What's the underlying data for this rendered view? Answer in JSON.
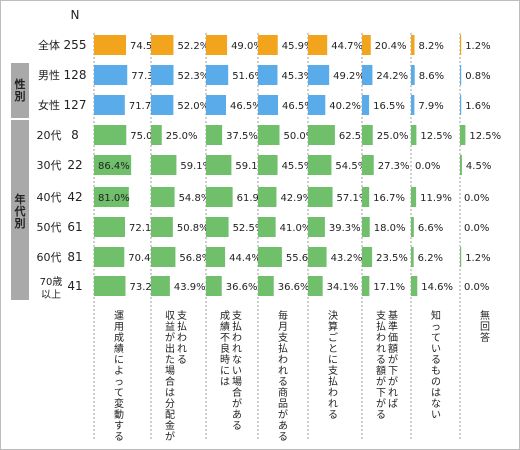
{
  "chart_data": {
    "type": "bar",
    "layout": "small-multiple horizontal bar table",
    "n_header": "N",
    "group_labels": [
      "性別",
      "年代別"
    ],
    "rows": [
      {
        "label": "全体",
        "n": 255
      },
      {
        "label": "男性",
        "n": 128
      },
      {
        "label": "女性",
        "n": 127
      },
      {
        "label": "20代",
        "n": 8
      },
      {
        "label": "30代",
        "n": 22
      },
      {
        "label": "40代",
        "n": 42
      },
      {
        "label": "50代",
        "n": 61
      },
      {
        "label": "60代",
        "n": 81
      },
      {
        "label": "70歳以上",
        "n": 41
      }
    ],
    "series": [
      {
        "name": "運用成績によって変動する",
        "values": [
          74.5,
          77.3,
          71.7,
          75.0,
          86.4,
          81.0,
          72.1,
          70.4,
          73.2
        ]
      },
      {
        "name": "支払われる収益が出た場合は分配金が",
        "values": [
          52.2,
          52.3,
          52.0,
          25.0,
          59.1,
          54.8,
          50.8,
          56.8,
          43.9
        ]
      },
      {
        "name": "支払われない場合がある成績不良時には",
        "values": [
          49.0,
          51.6,
          46.5,
          37.5,
          59.1,
          61.9,
          52.5,
          44.4,
          36.6
        ]
      },
      {
        "name": "毎月支払われる商品がある",
        "values": [
          45.9,
          45.3,
          46.5,
          50.0,
          45.5,
          42.9,
          41.0,
          55.6,
          36.6
        ]
      },
      {
        "name": "決算ごとに支払われる",
        "values": [
          44.7,
          49.2,
          40.2,
          62.5,
          54.5,
          57.1,
          39.3,
          43.2,
          34.1
        ]
      },
      {
        "name": "支払われる額が下がる基準価額が下がれば",
        "values": [
          20.4,
          24.2,
          16.5,
          25.0,
          27.3,
          16.7,
          18.0,
          23.5,
          17.1
        ]
      },
      {
        "name": "知っているものはない",
        "values": [
          8.2,
          8.6,
          7.9,
          12.5,
          0.0,
          11.9,
          6.6,
          6.2,
          14.6
        ]
      },
      {
        "name": "無回答",
        "values": [
          1.2,
          0.8,
          1.6,
          12.5,
          4.5,
          0.0,
          0.0,
          1.2,
          0.0
        ]
      }
    ],
    "value_format": "%",
    "xlim": [
      0,
      100
    ],
    "grid": false,
    "legend": "none",
    "colors": {
      "total": "#f2a51c",
      "gender": "#5aabea",
      "age": "#6fbf6b",
      "group_label_bg": "#a9a9a9",
      "divider": "#888888"
    }
  }
}
